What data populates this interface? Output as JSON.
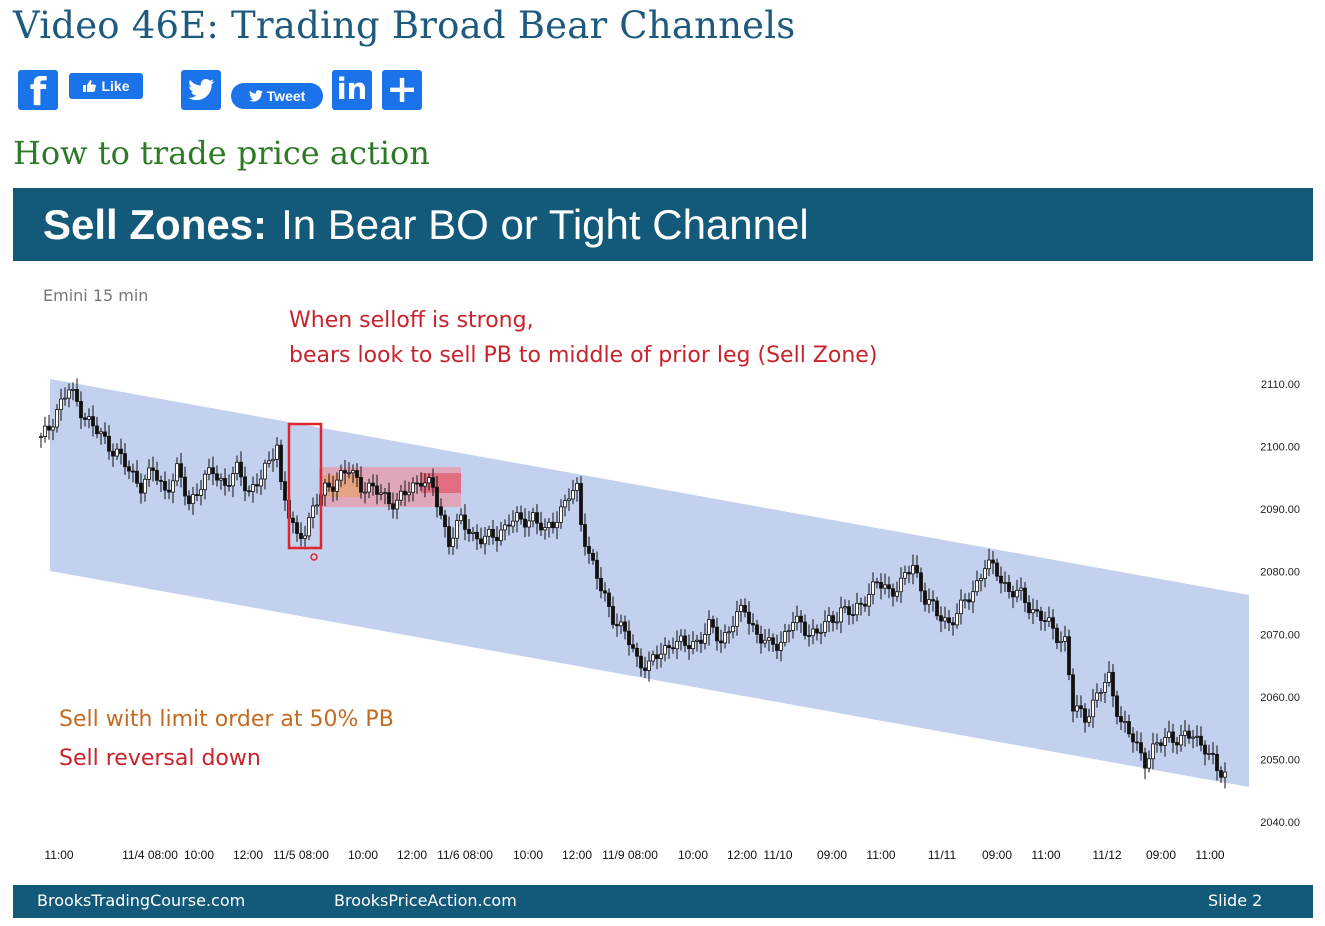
{
  "page": {
    "title": "Video 46E: Trading Broad Bear Channels",
    "section_heading": "How to trade price action"
  },
  "share": {
    "like_label": "Like",
    "tweet_label": "Tweet",
    "facebook_icon": "facebook-icon",
    "twitter_icon": "twitter-icon",
    "linkedin_icon": "linkedin-icon",
    "share_more_icon": "plus-icon"
  },
  "slide": {
    "title_bold": "Sell Zones:",
    "title_rest": "In Bear BO or Tight Channel",
    "chart_label": "Emini 15 min",
    "annotation_line1": "When selloff is strong,",
    "annotation_line2": "bears look to sell PB to middle of prior leg (Sell Zone)",
    "note_limit": "Sell with limit order at 50% PB",
    "note_reversal": "Sell reversal down",
    "footer_left": "BrooksTradingCourse.com",
    "footer_center": "BrooksPriceAction.com",
    "footer_right": "Slide  2",
    "colors": {
      "header_bg": "#135a7a",
      "channel_fill": "#c3d0ee",
      "annotation_red": "#c8232c",
      "annotation_orange": "#c46a22"
    }
  },
  "chart_data": {
    "type": "candlestick",
    "y_ticks": [
      "2110.00",
      "2100.00",
      "2090.00",
      "2080.00",
      "2070.00",
      "2060.00",
      "2050.00",
      "2040.00"
    ],
    "ylim": [
      2040,
      2110
    ],
    "x_ticks": [
      "11:00",
      "11/4 08:00",
      "10:00",
      "12:00",
      "11/5 08:00",
      "10:00",
      "12:00",
      "11/6 08:00",
      "10:00",
      "12:00",
      "11/9 08:00",
      "10:00",
      "12:00",
      "11/10",
      "09:00",
      "11:00",
      "11/11",
      "09:00",
      "11:00",
      "11/12",
      "09:00",
      "11:00"
    ],
    "close_path": [
      [
        0,
        2101
      ],
      [
        2,
        2103
      ],
      [
        4,
        2106
      ],
      [
        7,
        2109
      ],
      [
        10,
        2106
      ],
      [
        13,
        2103
      ],
      [
        16,
        2101
      ],
      [
        19,
        2099
      ],
      [
        22,
        2096
      ],
      [
        25,
        2094
      ],
      [
        28,
        2096
      ],
      [
        31,
        2093
      ],
      [
        34,
        2096
      ],
      [
        37,
        2091
      ],
      [
        40,
        2094
      ],
      [
        43,
        2096
      ],
      [
        46,
        2094
      ],
      [
        49,
        2096
      ],
      [
        52,
        2093
      ],
      [
        55,
        2095
      ],
      [
        57,
        2097
      ],
      [
        59,
        2101
      ],
      [
        60,
        2094
      ],
      [
        62,
        2089
      ],
      [
        64,
        2085
      ],
      [
        66,
        2087
      ],
      [
        68,
        2090
      ],
      [
        71,
        2093
      ],
      [
        74,
        2095
      ],
      [
        77,
        2096
      ],
      [
        80,
        2094
      ],
      [
        83,
        2093
      ],
      [
        86,
        2092
      ],
      [
        89,
        2091
      ],
      [
        92,
        2093
      ],
      [
        95,
        2095
      ],
      [
        98,
        2093
      ],
      [
        100,
        2089
      ],
      [
        102,
        2085
      ],
      [
        105,
        2088
      ],
      [
        108,
        2086
      ],
      [
        111,
        2085
      ],
      [
        114,
        2086
      ],
      [
        117,
        2088
      ],
      [
        120,
        2088
      ],
      [
        123,
        2089
      ],
      [
        126,
        2086
      ],
      [
        129,
        2089
      ],
      [
        132,
        2092
      ],
      [
        134,
        2093
      ],
      [
        135,
        2088
      ],
      [
        137,
        2083
      ],
      [
        140,
        2077
      ],
      [
        143,
        2073
      ],
      [
        146,
        2070
      ],
      [
        149,
        2066
      ],
      [
        152,
        2065
      ],
      [
        155,
        2067
      ],
      [
        158,
        2069
      ],
      [
        161,
        2068
      ],
      [
        164,
        2069
      ],
      [
        167,
        2071
      ],
      [
        170,
        2069
      ],
      [
        173,
        2072
      ],
      [
        176,
        2074
      ],
      [
        179,
        2070
      ],
      [
        182,
        2068
      ],
      [
        185,
        2069
      ],
      [
        188,
        2072
      ],
      [
        191,
        2071
      ],
      [
        194,
        2070
      ],
      [
        197,
        2072
      ],
      [
        200,
        2074
      ],
      [
        203,
        2073
      ],
      [
        206,
        2076
      ],
      [
        209,
        2078
      ],
      [
        212,
        2077
      ],
      [
        215,
        2078
      ],
      [
        218,
        2081
      ],
      [
        221,
        2076
      ],
      [
        224,
        2073
      ],
      [
        227,
        2072
      ],
      [
        230,
        2074
      ],
      [
        233,
        2077
      ],
      [
        236,
        2081
      ],
      [
        239,
        2080
      ],
      [
        242,
        2077
      ],
      [
        245,
        2076
      ],
      [
        248,
        2074
      ],
      [
        251,
        2072
      ],
      [
        254,
        2070
      ],
      [
        256,
        2069
      ],
      [
        258,
        2058
      ],
      [
        261,
        2057
      ],
      [
        264,
        2060
      ],
      [
        267,
        2063
      ],
      [
        270,
        2056
      ],
      [
        273,
        2053
      ],
      [
        276,
        2050
      ],
      [
        279,
        2052
      ],
      [
        282,
        2054
      ],
      [
        285,
        2053
      ],
      [
        288,
        2054
      ],
      [
        291,
        2052
      ],
      [
        294,
        2048
      ],
      [
        296,
        2048
      ]
    ],
    "annotations": [
      {
        "type": "red-box",
        "label": "selloff bars"
      },
      {
        "type": "sell-zone",
        "label": "Sell Zone"
      },
      {
        "type": "channel",
        "label": "broad bear channel"
      }
    ]
  }
}
